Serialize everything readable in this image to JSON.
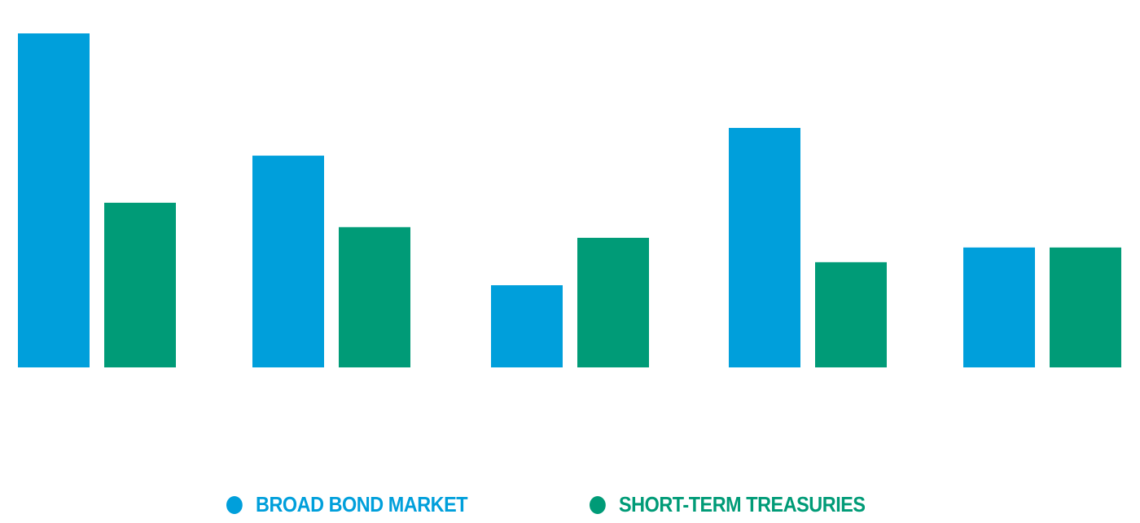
{
  "chart_data": {
    "type": "bar",
    "title": "",
    "xlabel": "",
    "ylabel": "",
    "categories": [
      "",
      "",
      "",
      "",
      ""
    ],
    "ylim": [
      0,
      100
    ],
    "grid": false,
    "legend_placement": "bottom",
    "series": [
      {
        "name": "BROAD BOND MARKET",
        "color": "#009fdb",
        "values": [
          100,
          63.4,
          24.6,
          71.7,
          35.9
        ]
      },
      {
        "name": "SHORT-TERM TREASURIES",
        "color": "#009b77",
        "values": [
          49.3,
          42.0,
          38.8,
          31.5,
          35.9
        ]
      }
    ]
  }
}
